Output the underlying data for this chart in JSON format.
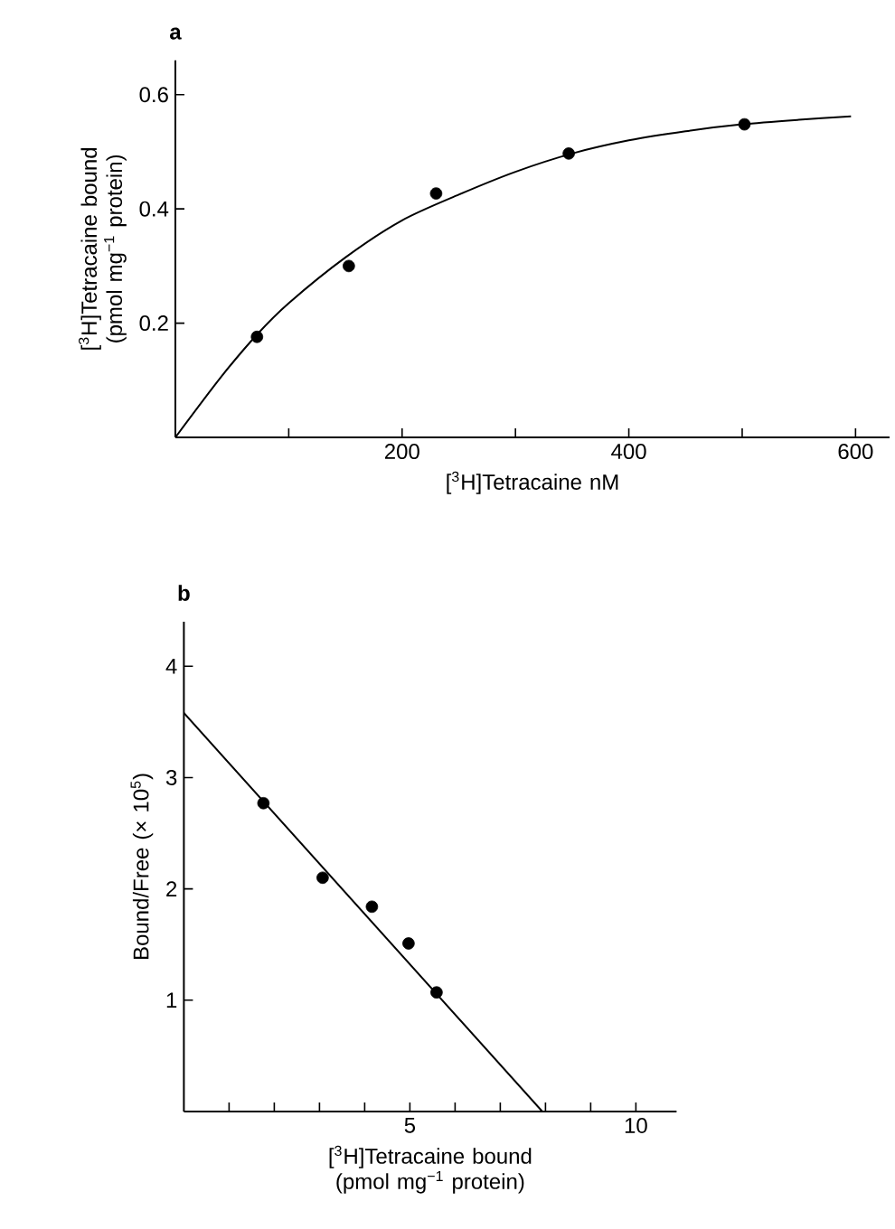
{
  "chart_data": [
    {
      "type": "scatter",
      "marker": "circle",
      "title": "a",
      "xlabel": "[$^{3}$H]Tetracaine nM",
      "ylabel": "[$^{3}$H]Tetracaine bound (pmol mg$^{−1}$ protein)",
      "xlim": [
        0,
        630
      ],
      "ylim": [
        0,
        0.66
      ],
      "xticks": [
        {
          "value": 100,
          "label": null
        },
        200,
        {
          "value": 300,
          "label": null
        },
        400,
        {
          "value": 500,
          "label": null
        },
        600
      ],
      "yticks": [
        0.2,
        0.4,
        0.6
      ],
      "series": [
        {
          "color": "#000000",
          "x": [
            72,
            153,
            230,
            347,
            502
          ],
          "values": [
            0.176,
            0.3,
            0.427,
            0.497,
            0.548
          ]
        },
        {
          "type": "line",
          "marker": "none",
          "color": "#000000",
          "x": [
            0,
            40,
            72,
            100,
            150,
            200,
            250,
            300,
            350,
            400,
            450,
            500,
            550,
            596
          ],
          "values": [
            0,
            0.105,
            0.18,
            0.235,
            0.315,
            0.38,
            0.425,
            0.465,
            0.497,
            0.52,
            0.536,
            0.548,
            0.556,
            0.562
          ]
        }
      ]
    },
    {
      "type": "scatter",
      "marker": "circle",
      "title": "b",
      "xlabel": "[$^{3}$H]Tetracaine bound (pmol mg$^{−1}$ protein)",
      "ylabel": "Bound/Free (× 10$^{5}$)",
      "xlim": [
        0,
        10.9
      ],
      "ylim": [
        0,
        4.4
      ],
      "xticks": [
        {
          "value": 1,
          "label": null
        },
        {
          "value": 2,
          "label": null
        },
        {
          "value": 3,
          "label": null
        },
        {
          "value": 4,
          "label": null
        },
        5,
        {
          "value": 6,
          "label": null
        },
        {
          "value": 7,
          "label": null
        },
        {
          "value": 8,
          "label": null
        },
        {
          "value": 9,
          "label": null
        },
        10
      ],
      "yticks": [
        1,
        2,
        3,
        4
      ],
      "series": [
        {
          "color": "#000000",
          "x": [
            1.76,
            3.07,
            4.16,
            4.97,
            5.59
          ],
          "values": [
            2.77,
            2.1,
            1.84,
            1.51,
            1.07
          ]
        },
        {
          "type": "line",
          "marker": "none",
          "color": "#000000",
          "x": [
            0,
            7.93
          ],
          "values": [
            3.58,
            0
          ]
        }
      ]
    }
  ]
}
